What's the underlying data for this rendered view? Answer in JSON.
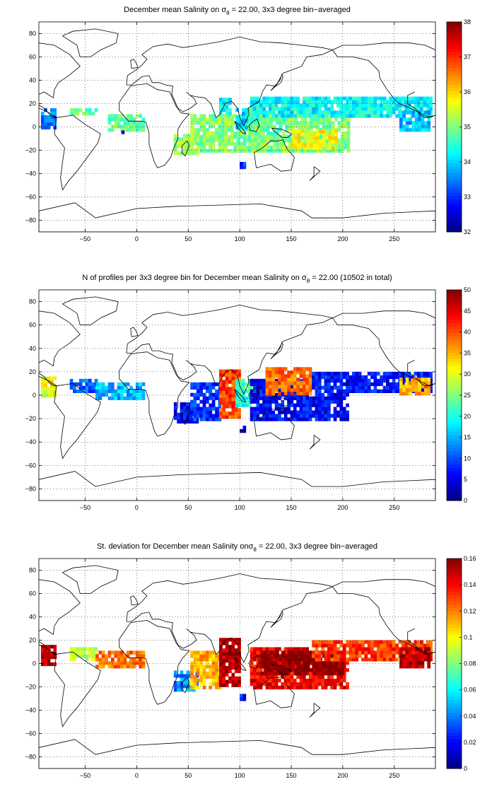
{
  "chart_data": [
    {
      "type": "heatmap",
      "title_pre": "December mean Salinity on ",
      "title_sigma": "σ",
      "title_sub": "θ",
      "title_post": " = 22.00, 3x3 degree bin−averaged",
      "xlim": [
        -95,
        290
      ],
      "ylim": [
        -90,
        90
      ],
      "xticks": [
        -50,
        0,
        50,
        100,
        150,
        200,
        250
      ],
      "yticks": [
        80,
        60,
        40,
        20,
        0,
        -20,
        -40,
        -60,
        -80
      ],
      "grid": true,
      "colorbar": {
        "range": [
          32,
          38
        ],
        "ticks": [
          32,
          33,
          34,
          35,
          36,
          37,
          38
        ],
        "colormap": "jet"
      },
      "regions": [
        {
          "lon": [
            -93,
            -80
          ],
          "lat": [
            -2,
            16
          ],
          "value": 33.5
        },
        {
          "lon": [
            -65,
            -40
          ],
          "lat": [
            10,
            16
          ],
          "value": 34.8
        },
        {
          "lon": [
            -28,
            8
          ],
          "lat": [
            -4,
            10
          ],
          "value": 34.8
        },
        {
          "lon": [
            -15,
            -12
          ],
          "lat": [
            -6,
            -4
          ],
          "value": 33.0
        },
        {
          "lon": [
            36,
            60
          ],
          "lat": [
            -24,
            -8
          ],
          "value": 35.0
        },
        {
          "lon": [
            52,
            125
          ],
          "lat": [
            -22,
            10
          ],
          "value": 35.0
        },
        {
          "lon": [
            80,
            92
          ],
          "lat": [
            10,
            24
          ],
          "value": 34.2
        },
        {
          "lon": [
            96,
            112
          ],
          "lat": [
            -2,
            14
          ],
          "value": 34.0
        },
        {
          "lon": [
            108,
            205
          ],
          "lat": [
            -22,
            14
          ],
          "value": 34.9
        },
        {
          "lon": [
            150,
            195
          ],
          "lat": [
            -20,
            -4
          ],
          "value": 35.6
        },
        {
          "lon": [
            110,
            285
          ],
          "lat": [
            8,
            26
          ],
          "value": 34.2
        },
        {
          "lon": [
            255,
            285
          ],
          "lat": [
            -4,
            14
          ],
          "value": 33.8
        },
        {
          "lon": [
            100,
            104
          ],
          "lat": [
            -36,
            -32
          ],
          "value": 33.0
        }
      ]
    },
    {
      "type": "heatmap",
      "title_pre": "N of profiles per 3x3 degree bin for December mean Salinity on ",
      "title_sigma": "σ",
      "title_sub": "θ",
      "title_post": " = 22.00 (10502 in total)",
      "xlim": [
        -95,
        290
      ],
      "ylim": [
        -90,
        90
      ],
      "xticks": [
        -50,
        0,
        50,
        100,
        150,
        200,
        250
      ],
      "yticks": [
        80,
        60,
        40,
        20,
        0,
        -20,
        -40,
        -60,
        -80
      ],
      "grid": true,
      "colorbar": {
        "range": [
          0,
          50
        ],
        "ticks": [
          0,
          5,
          10,
          15,
          20,
          25,
          30,
          35,
          40,
          45,
          50
        ],
        "colormap": "jet"
      },
      "regions": [
        {
          "lon": [
            -93,
            -80
          ],
          "lat": [
            -2,
            16
          ],
          "value": 30
        },
        {
          "lon": [
            -65,
            -40
          ],
          "lat": [
            2,
            14
          ],
          "value": 10
        },
        {
          "lon": [
            -40,
            8
          ],
          "lat": [
            -4,
            10
          ],
          "value": 15
        },
        {
          "lon": [
            36,
            60
          ],
          "lat": [
            -24,
            -8
          ],
          "value": 5
        },
        {
          "lon": [
            52,
            80
          ],
          "lat": [
            -22,
            10
          ],
          "value": 8
        },
        {
          "lon": [
            80,
            100
          ],
          "lat": [
            -20,
            22
          ],
          "value": 40
        },
        {
          "lon": [
            96,
            115
          ],
          "lat": [
            -10,
            14
          ],
          "value": 20
        },
        {
          "lon": [
            110,
            205
          ],
          "lat": [
            -22,
            14
          ],
          "value": 6
        },
        {
          "lon": [
            125,
            170
          ],
          "lat": [
            0,
            22
          ],
          "value": 38
        },
        {
          "lon": [
            170,
            285
          ],
          "lat": [
            2,
            20
          ],
          "value": 6
        },
        {
          "lon": [
            255,
            285
          ],
          "lat": [
            0,
            14
          ],
          "value": 35
        },
        {
          "lon": [
            100,
            104
          ],
          "lat": [
            -32,
            -28
          ],
          "value": 2
        }
      ]
    },
    {
      "type": "heatmap",
      "title_pre": "St. deviation for December mean Salinity on",
      "title_sigma": "σ",
      "title_sub": "θ",
      "title_post": " = 22.00, 3x3 degree bin−averaged",
      "xlim": [
        -95,
        290
      ],
      "ylim": [
        -90,
        90
      ],
      "xticks": [
        -50,
        0,
        50,
        100,
        150,
        200,
        250
      ],
      "yticks": [
        80,
        60,
        40,
        20,
        0,
        -20,
        -40,
        -60,
        -80
      ],
      "grid": true,
      "colorbar": {
        "range": [
          0,
          0.16
        ],
        "ticks": [
          0,
          0.02,
          0.04,
          0.06,
          0.08,
          0.1,
          0.12,
          0.14,
          0.16
        ],
        "colormap": "jet"
      },
      "regions": [
        {
          "lon": [
            -93,
            -80
          ],
          "lat": [
            -2,
            16
          ],
          "value": 0.15
        },
        {
          "lon": [
            -65,
            -40
          ],
          "lat": [
            2,
            14
          ],
          "value": 0.09
        },
        {
          "lon": [
            -40,
            8
          ],
          "lat": [
            -4,
            10
          ],
          "value": 0.12
        },
        {
          "lon": [
            36,
            60
          ],
          "lat": [
            -24,
            -8
          ],
          "value": 0.04
        },
        {
          "lon": [
            52,
            80
          ],
          "lat": [
            -22,
            10
          ],
          "value": 0.11
        },
        {
          "lon": [
            80,
            100
          ],
          "lat": [
            -20,
            22
          ],
          "value": 0.15
        },
        {
          "lon": [
            110,
            205
          ],
          "lat": [
            -22,
            14
          ],
          "value": 0.14
        },
        {
          "lon": [
            120,
            200
          ],
          "lat": [
            -10,
            10
          ],
          "value": 0.16
        },
        {
          "lon": [
            170,
            285
          ],
          "lat": [
            2,
            20
          ],
          "value": 0.13
        },
        {
          "lon": [
            255,
            285
          ],
          "lat": [
            -4,
            14
          ],
          "value": 0.15
        },
        {
          "lon": [
            100,
            104
          ],
          "lat": [
            -32,
            -28
          ],
          "value": 0.02
        }
      ]
    }
  ]
}
